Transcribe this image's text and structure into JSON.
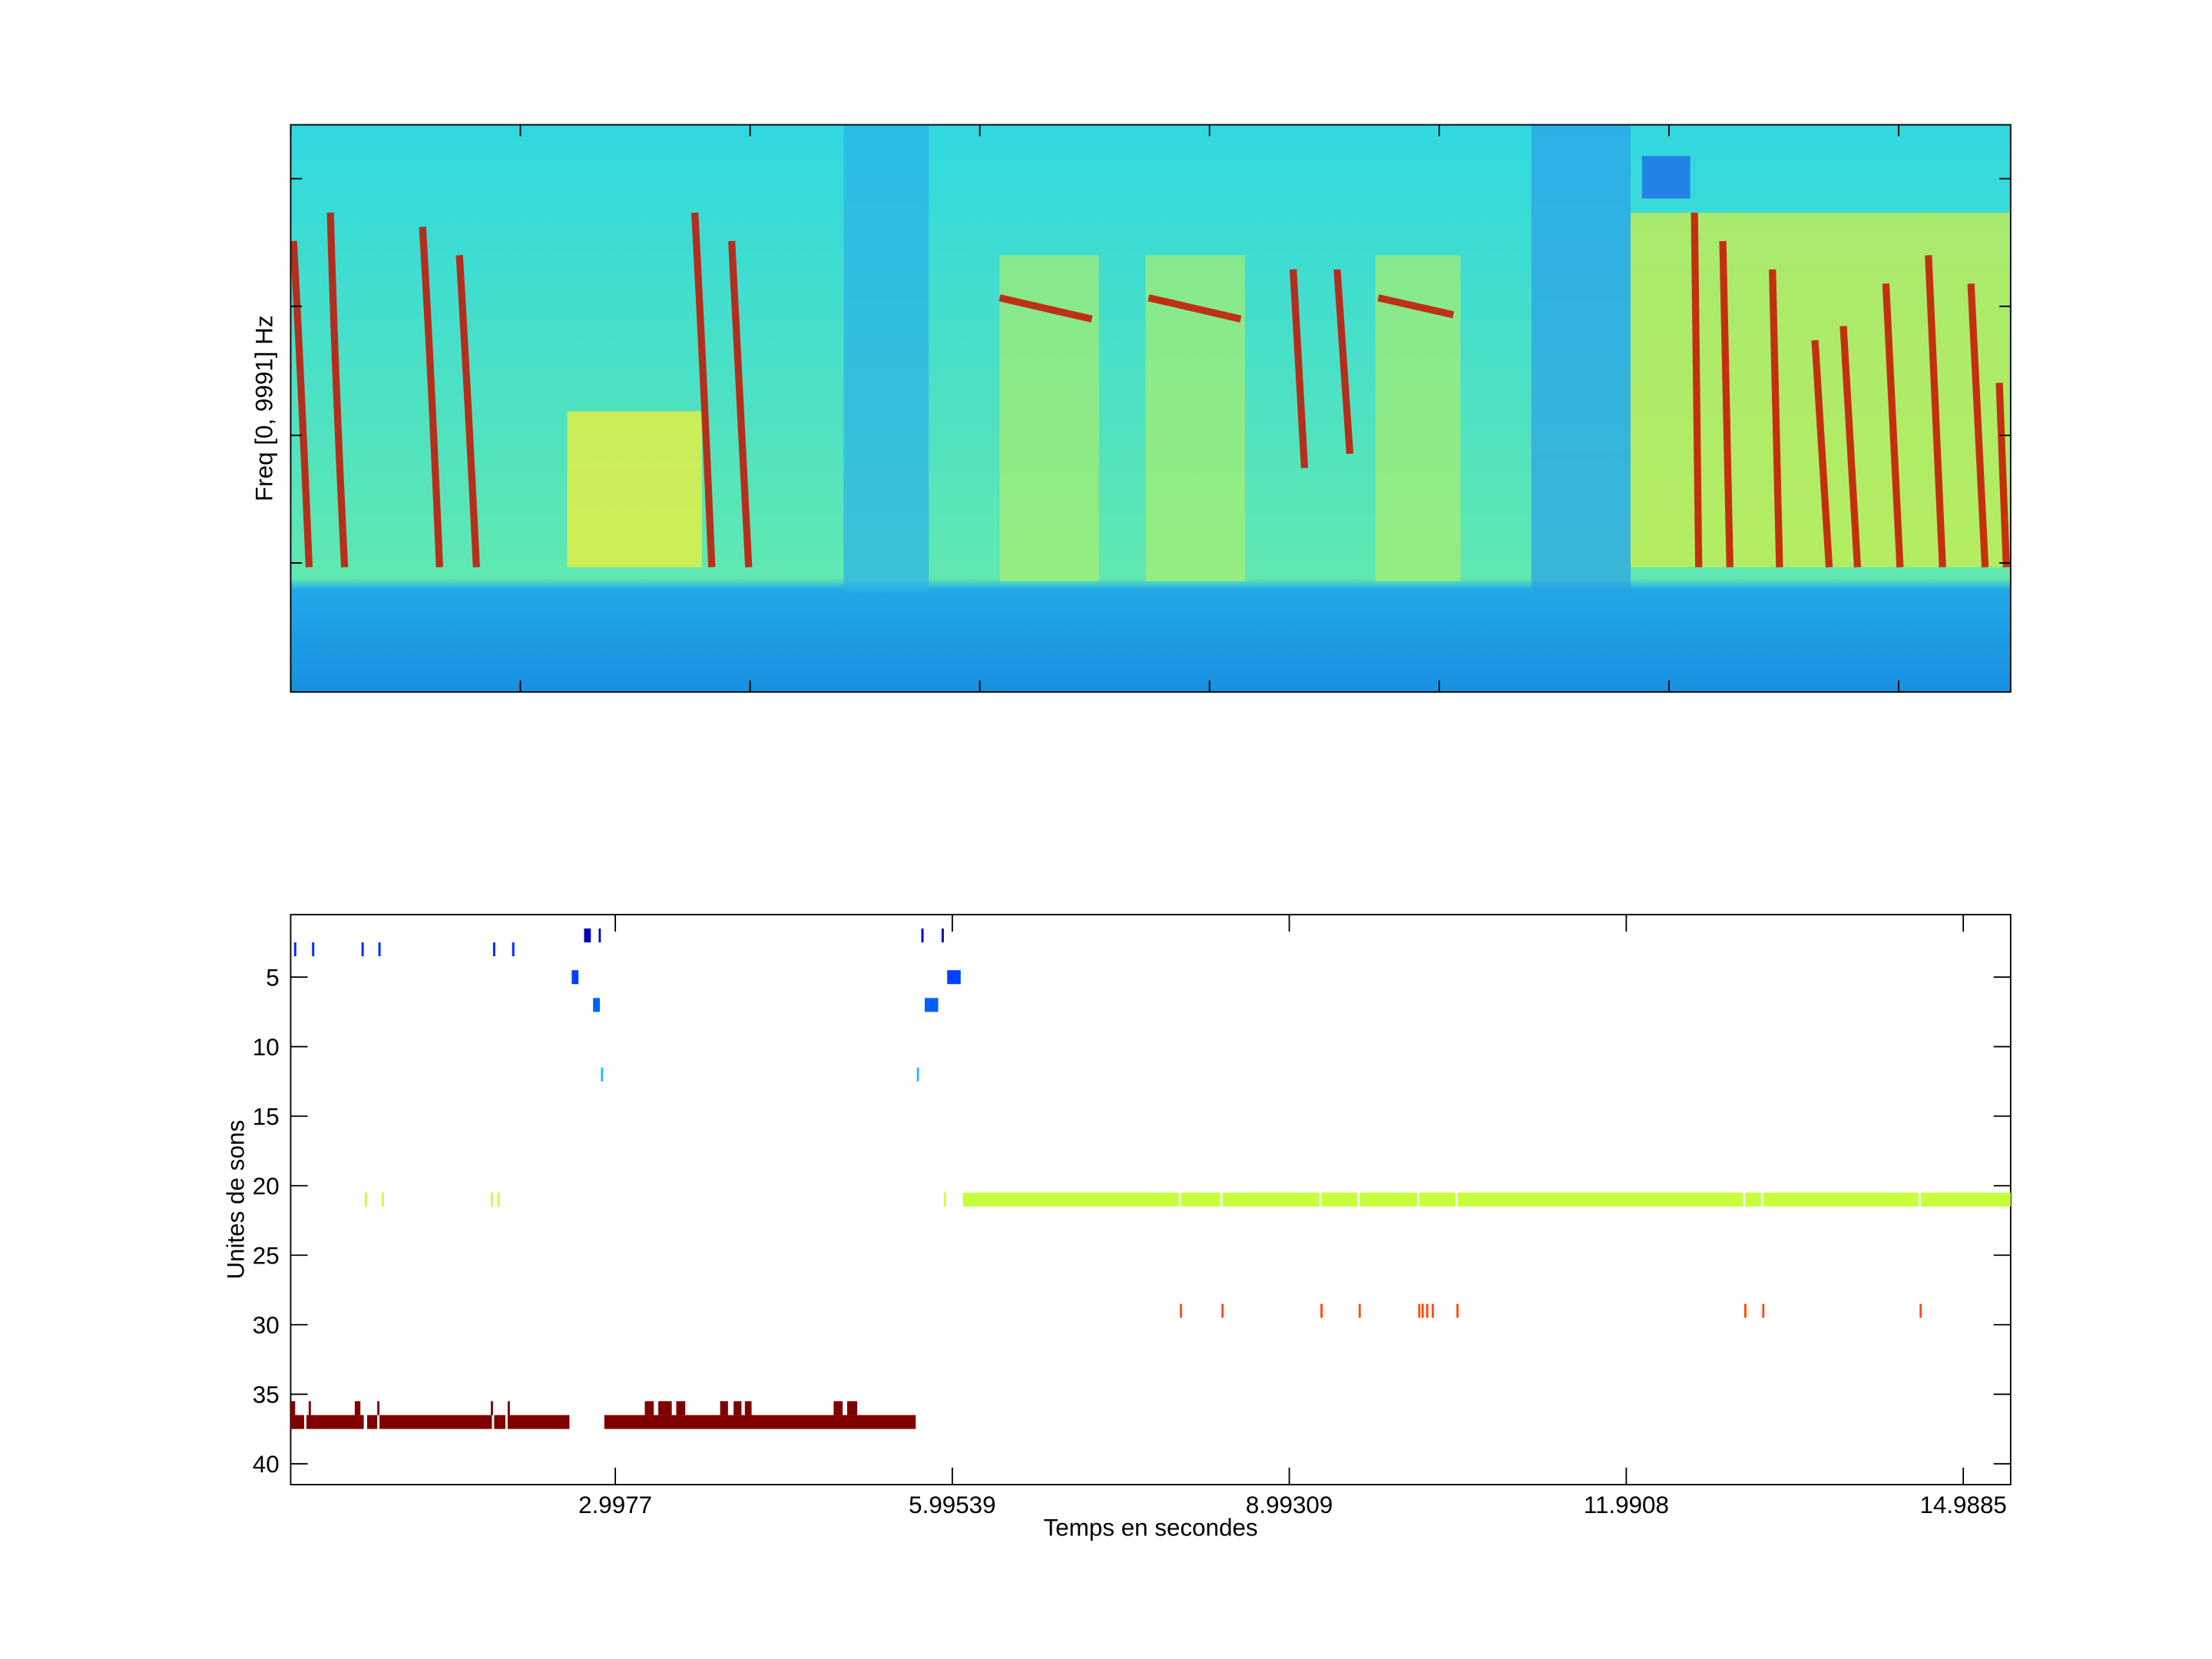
{
  "chart_data": [
    {
      "type": "spectrogram",
      "ylabel": "Freq [0, 9991] Hz"
    },
    {
      "type": "raster",
      "xlabel": "Temps en secondes",
      "ylabel": "Unites de sons",
      "xlim": [
        0.11,
        15.41
      ],
      "ylim": [
        0.5,
        41.5
      ],
      "y_reversed": true,
      "xticks": [
        2.9977,
        5.99539,
        8.99309,
        11.9908,
        14.9885
      ],
      "yticks": [
        5,
        10,
        15,
        20,
        25,
        30,
        35,
        40
      ],
      "series": [
        {
          "color": "#0000b4",
          "row": 2,
          "segments": [
            [
              2.72,
              2.78
            ],
            [
              2.85,
              2.86
            ],
            [
              5.72,
              5.74
            ],
            [
              5.9,
              5.92
            ]
          ]
        },
        {
          "color": "#0028ff",
          "row": 3,
          "segments": [
            [
              0.14,
              0.16
            ],
            [
              0.3,
              0.32
            ],
            [
              0.74,
              0.76
            ],
            [
              0.89,
              0.91
            ],
            [
              1.91,
              1.93
            ],
            [
              2.08,
              2.1
            ]
          ]
        },
        {
          "color": "#0040ff",
          "row": 5,
          "segments": [
            [
              2.61,
              2.67
            ],
            [
              5.95,
              6.07
            ]
          ]
        },
        {
          "color": "#0060ff",
          "row": 7,
          "segments": [
            [
              2.8,
              2.86
            ],
            [
              5.75,
              5.87
            ]
          ]
        },
        {
          "color": "#20b8ff",
          "row": 12,
          "segments": [
            [
              2.87,
              2.88
            ],
            [
              5.68,
              5.69
            ]
          ]
        },
        {
          "color": "#c8ff3c",
          "row": 21,
          "segments": [
            [
              0.77,
              0.78
            ],
            [
              0.92,
              0.93
            ],
            [
              1.89,
              1.9
            ],
            [
              1.95,
              1.96
            ],
            [
              5.92,
              5.93
            ],
            [
              6.09,
              8.01
            ],
            [
              8.03,
              8.38
            ],
            [
              8.4,
              9.26
            ],
            [
              9.28,
              9.6
            ],
            [
              9.62,
              10.13
            ],
            [
              10.15,
              10.47
            ],
            [
              10.49,
              13.03
            ],
            [
              13.05,
              13.19
            ],
            [
              13.21,
              14.59
            ],
            [
              14.61,
              15.41
            ]
          ]
        },
        {
          "color": "#ff4a00",
          "row": 29,
          "segments": [
            [
              8.02,
              8.03
            ],
            [
              8.39,
              8.4
            ],
            [
              9.27,
              9.29
            ],
            [
              9.61,
              9.62
            ],
            [
              10.14,
              10.15
            ],
            [
              10.17,
              10.18
            ],
            [
              10.21,
              10.23
            ],
            [
              10.26,
              10.27
            ],
            [
              10.48,
              10.49
            ],
            [
              13.04,
              13.06
            ],
            [
              13.2,
              13.21
            ],
            [
              14.6,
              14.61
            ]
          ]
        },
        {
          "color": "#800000",
          "row": 36,
          "segments": [
            [
              0.11,
              0.15
            ],
            [
              0.27,
              0.29
            ],
            [
              0.68,
              0.73
            ],
            [
              0.88,
              0.9
            ],
            [
              1.89,
              1.91
            ],
            [
              2.04,
              2.06
            ],
            [
              3.26,
              3.34
            ],
            [
              3.38,
              3.5
            ],
            [
              3.54,
              3.62
            ],
            [
              3.93,
              4.0
            ],
            [
              4.05,
              4.12
            ],
            [
              4.15,
              4.21
            ],
            [
              4.94,
              5.02
            ],
            [
              5.06,
              5.15
            ]
          ]
        },
        {
          "color": "#800000",
          "row": 37,
          "segments": [
            [
              0.11,
              0.23
            ],
            [
              0.25,
              0.76
            ],
            [
              0.79,
              0.88
            ],
            [
              0.9,
              1.9
            ],
            [
              1.92,
              2.02
            ],
            [
              2.04,
              2.59
            ],
            [
              2.9,
              5.67
            ]
          ]
        }
      ]
    }
  ]
}
